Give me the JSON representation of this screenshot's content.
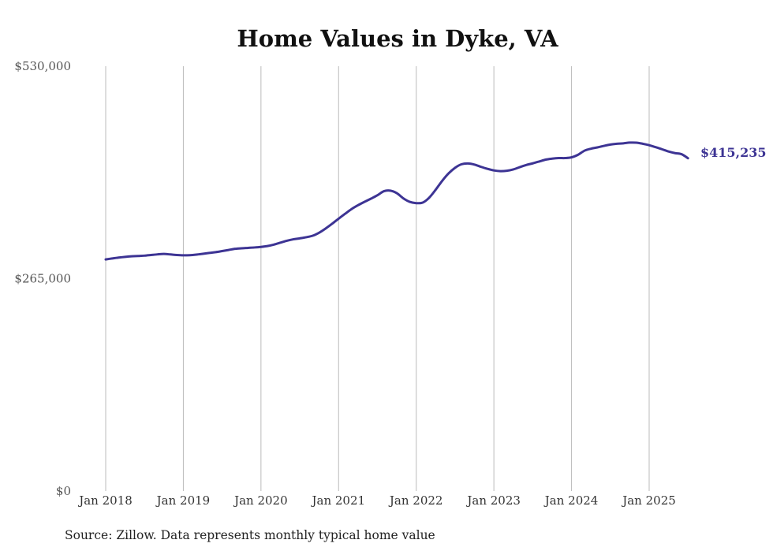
{
  "chart_data": {
    "type": "line",
    "title": "Home Values in Dyke, VA",
    "source": "Source: Zillow. Data represents monthly typical home value",
    "xlabel": "",
    "ylabel": "",
    "ylim": [
      0,
      530000
    ],
    "yticks": [
      {
        "value": 0,
        "label": "$0"
      },
      {
        "value": 265000,
        "label": "$265,000"
      },
      {
        "value": 530000,
        "label": "$530,000"
      }
    ],
    "xticks": [
      "Jan 2018",
      "Jan 2019",
      "Jan 2020",
      "Jan 2021",
      "Jan 2022",
      "Jan 2023",
      "Jan 2024",
      "Jan 2025"
    ],
    "grid": "vertical",
    "color": "#3d3494",
    "end_label": "$415,235",
    "series": [
      {
        "x": [
          "2018-01",
          "2018-02",
          "2018-03",
          "2018-04",
          "2018-05",
          "2018-06",
          "2018-07",
          "2018-08",
          "2018-09",
          "2018-10",
          "2018-11",
          "2018-12",
          "2019-01",
          "2019-02",
          "2019-03",
          "2019-04",
          "2019-05",
          "2019-06",
          "2019-07",
          "2019-08",
          "2019-09",
          "2019-10",
          "2019-11",
          "2019-12",
          "2020-01",
          "2020-02",
          "2020-03",
          "2020-04",
          "2020-05",
          "2020-06",
          "2020-07",
          "2020-08",
          "2020-09",
          "2020-10",
          "2020-11",
          "2020-12",
          "2021-01",
          "2021-02",
          "2021-03",
          "2021-04",
          "2021-05",
          "2021-06",
          "2021-07",
          "2021-08",
          "2021-09",
          "2021-10",
          "2021-11",
          "2021-12",
          "2022-01",
          "2022-02",
          "2022-03",
          "2022-04",
          "2022-05",
          "2022-06",
          "2022-07",
          "2022-08",
          "2022-09",
          "2022-10",
          "2022-11",
          "2022-12",
          "2023-01",
          "2023-02",
          "2023-03",
          "2023-04",
          "2023-05",
          "2023-06",
          "2023-07",
          "2023-08",
          "2023-09",
          "2023-10",
          "2023-11",
          "2023-12",
          "2024-01",
          "2024-02",
          "2024-03",
          "2024-04",
          "2024-05",
          "2024-06",
          "2024-07",
          "2024-08",
          "2024-09",
          "2024-10",
          "2024-11",
          "2024-12",
          "2025-01",
          "2025-02",
          "2025-03",
          "2025-04",
          "2025-05",
          "2025-06",
          "2025-07"
        ],
        "y": [
          289000,
          290200,
          291300,
          292200,
          292900,
          293300,
          293700,
          294500,
          295300,
          295800,
          295200,
          294500,
          294100,
          294300,
          295000,
          296000,
          297100,
          298100,
          299400,
          300800,
          302200,
          302900,
          303400,
          303900,
          304600,
          305700,
          307500,
          309900,
          312300,
          314100,
          315300,
          316700,
          318600,
          322400,
          327600,
          333500,
          339800,
          345900,
          351800,
          356600,
          360800,
          364800,
          369000,
          374100,
          374800,
          371600,
          365200,
          360800,
          359200,
          359900,
          366000,
          375900,
          386900,
          396300,
          403300,
          407700,
          408700,
          407300,
          404500,
          402000,
          400000,
          399100,
          399600,
          401300,
          404100,
          406800,
          408800,
          411100,
          413500,
          414700,
          415400,
          415400,
          416300,
          419500,
          424600,
          427100,
          428700,
          430600,
          432300,
          433300,
          433800,
          434700,
          434600,
          433300,
          431500,
          429000,
          426400,
          423600,
          421600,
          420300,
          415235
        ]
      }
    ]
  }
}
